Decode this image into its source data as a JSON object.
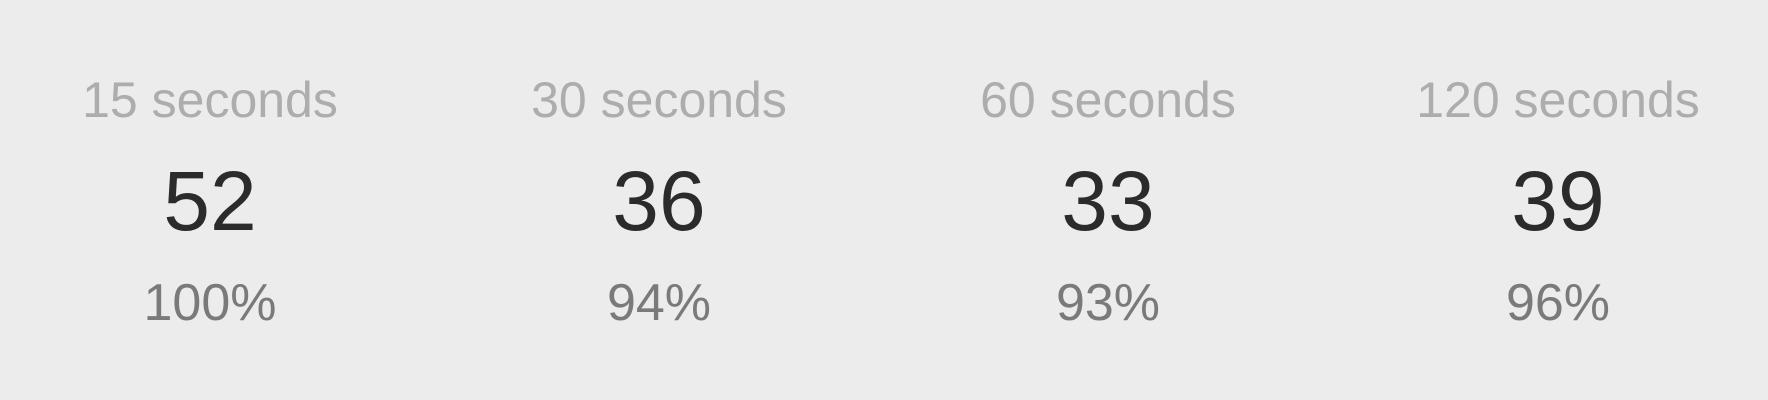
{
  "stats": [
    {
      "duration": "15 seconds",
      "wpm": "52",
      "accuracy": "100%"
    },
    {
      "duration": "30 seconds",
      "wpm": "36",
      "accuracy": "94%"
    },
    {
      "duration": "60 seconds",
      "wpm": "33",
      "accuracy": "93%"
    },
    {
      "duration": "120 seconds",
      "wpm": "39",
      "accuracy": "96%"
    }
  ],
  "colors": {
    "background": "#ececec",
    "label": "#adadad",
    "value": "#2b2b2b",
    "accuracy": "#7a7a7a"
  }
}
